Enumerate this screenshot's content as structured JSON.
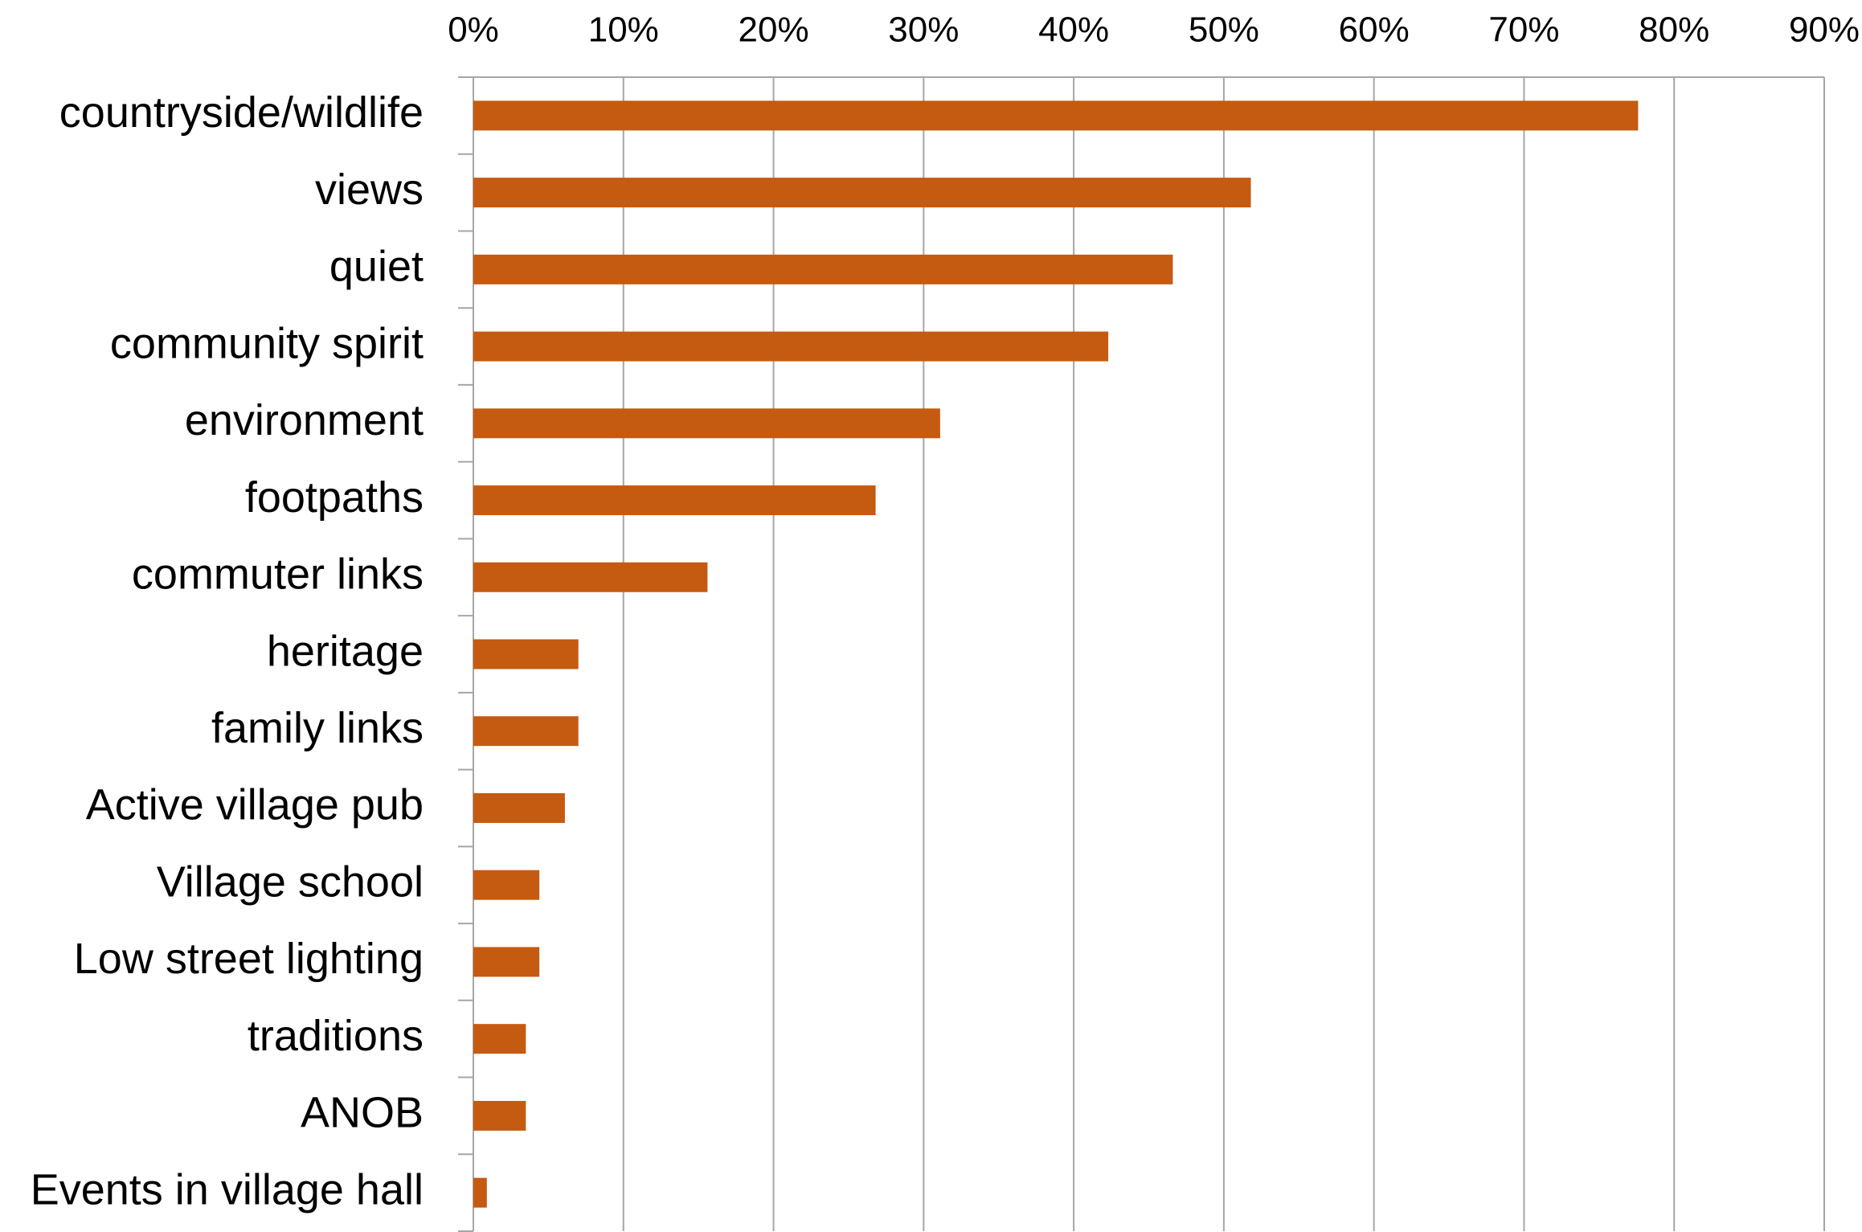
{
  "chart_data": {
    "type": "bar",
    "orientation": "horizontal",
    "title": "",
    "xlabel": "",
    "ylabel": "",
    "xlim": [
      0,
      90
    ],
    "x_axis_position": "top",
    "x_ticks": [
      "0%",
      "10%",
      "20%",
      "30%",
      "40%",
      "50%",
      "60%",
      "70%",
      "80%",
      "90%"
    ],
    "grid": true,
    "legend": "none",
    "bar_color": "#C55A11",
    "categories": [
      "countryside/wildlife",
      "views",
      "quiet",
      "community spirit",
      "environment",
      "footpaths",
      "commuter links",
      "heritage",
      "family links",
      "Active village pub",
      "Village school",
      "Low street lighting",
      "traditions",
      "ANOB",
      "Events in village hall"
    ],
    "values": [
      77.6,
      51.8,
      46.6,
      42.3,
      31.1,
      26.8,
      15.6,
      7.0,
      7.0,
      6.1,
      4.4,
      4.4,
      3.5,
      3.5,
      0.9
    ]
  }
}
